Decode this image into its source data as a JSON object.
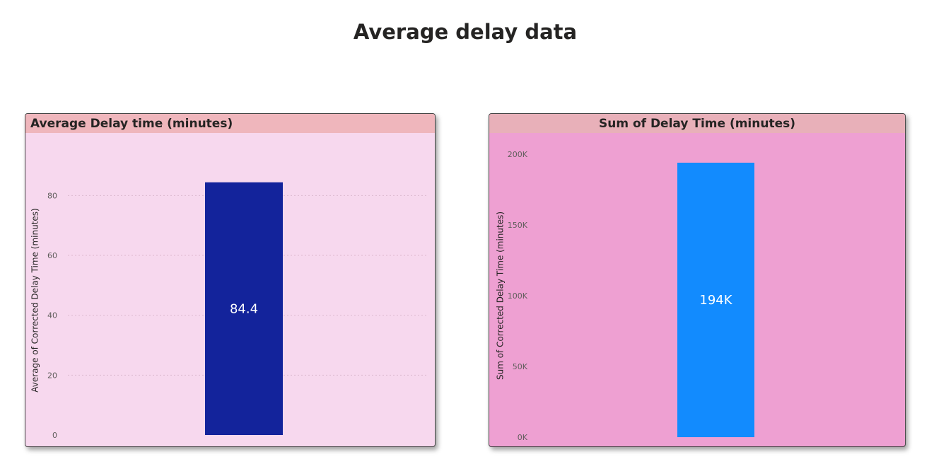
{
  "page": {
    "title": "Average delay data"
  },
  "colors": {
    "left_panel_bg": "#f7d8ee",
    "left_header_bg": "#efb6bc",
    "left_bar": "#13239b",
    "right_panel_bg": "#eea0d2",
    "right_header_bg": "#e8b0b9",
    "right_bar": "#128bfe",
    "gridline": "#dcb9cf",
    "tick_text": "#605e5c",
    "axis_title_text": "#252423",
    "bar_label_text": "#ffffff"
  },
  "chart_data": [
    {
      "type": "bar",
      "title": "Average Delay time (minutes)",
      "xlabel": "",
      "ylabel": "Average of Corrected Delay Time (minutes)",
      "categories": [
        ""
      ],
      "values": [
        84.4
      ],
      "data_labels": [
        "84.4"
      ],
      "ylim": [
        0,
        90
      ],
      "yticks": [
        0,
        20,
        40,
        60,
        80
      ],
      "ytick_labels": [
        "0",
        "20",
        "40",
        "60",
        "80"
      ],
      "grid": true,
      "bar_color": "#13239b"
    },
    {
      "type": "bar",
      "title": "Sum of Delay Time (minutes)",
      "xlabel": "",
      "ylabel": "Sum of Corrected Delay Time (minutes)",
      "categories": [
        ""
      ],
      "values": [
        194000
      ],
      "data_labels": [
        "194K"
      ],
      "ylim": [
        0,
        200000
      ],
      "yticks": [
        0,
        50000,
        100000,
        150000,
        200000
      ],
      "ytick_labels": [
        "0K",
        "50K",
        "100K",
        "150K",
        "200K"
      ],
      "grid": false,
      "bar_color": "#128bfe"
    }
  ]
}
